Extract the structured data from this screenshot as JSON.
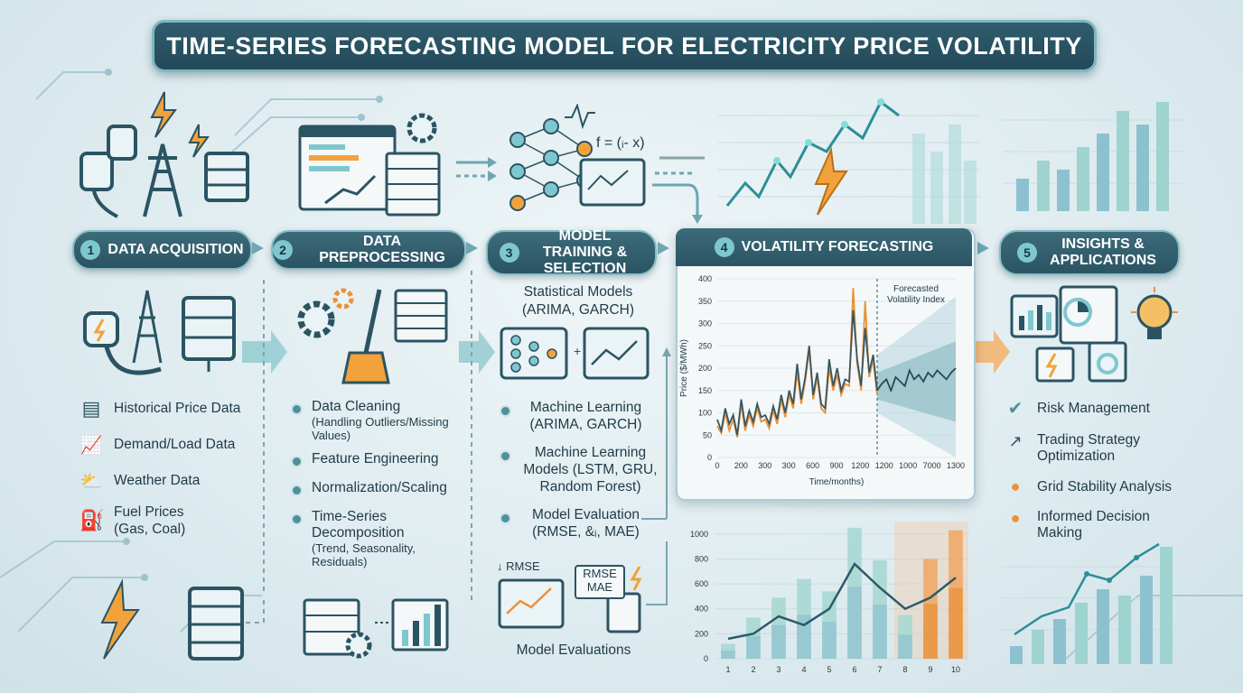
{
  "title": "TIME-SERIES FORECASTING MODEL FOR ELECTRICITY PRICE VOLATILITY",
  "stages": [
    {
      "num": "1",
      "label": "DATA ACQUISITION"
    },
    {
      "num": "2",
      "label": "DATA PREPROCESSING"
    },
    {
      "num": "3",
      "label": "MODEL TRAINING & SELECTION"
    },
    {
      "num": "4",
      "label": "VOLATILITY FORECASTING"
    },
    {
      "num": "5",
      "label": "INSIGHTS & APPLICATIONS"
    }
  ],
  "acquisition": {
    "items": [
      "Historical Price Data",
      "Demand/Load Data",
      "Weather Data",
      "Fuel Prices (Gas, Coal)"
    ]
  },
  "preprocessing": {
    "items": [
      {
        "label": "Data Cleaning",
        "detail": "(Handling Outliers/Missing Values)"
      },
      {
        "label": "Feature Engineering",
        "detail": ""
      },
      {
        "label": "Normalization/Scaling",
        "detail": ""
      },
      {
        "label": "Time-Series Decomposition",
        "detail": "(Trend, Seasonality, Residuals)"
      }
    ]
  },
  "training": {
    "statistical": "Statistical Models (ARIMA, GARCH)",
    "formula": "f = (ᵢ- x)",
    "items": [
      "Machine Learning (ARIMA, GARCH)",
      "Machine Learning Models (LSTM, GRU, Random Forest)",
      "Model Evaluation (RMSE, &ᵢ, MAE)"
    ],
    "rmse_label": "RMSE",
    "card_label": "RMSE MAE",
    "evaluations_label": "Model Evaluations"
  },
  "forecast_chart": {
    "annotation": "Forecasted Volatility Index",
    "ylabel": "Price ($/MWh)",
    "xlabel": "Time/months)"
  },
  "insights": {
    "items": [
      "Risk Management",
      "Trading Strategy Optimization",
      "Grid Stability Analysis",
      "Informed Decision Making"
    ]
  },
  "colors": {
    "dark": "#2b5463",
    "accent": "#7fc7cf",
    "orange": "#e8923a",
    "line": "#3a5560"
  },
  "chart_data": [
    {
      "type": "line",
      "title": "",
      "xlabel": "Time/months)",
      "ylabel": "Price ($/MWh)",
      "x_ticks": [
        "0",
        "200",
        "300",
        "300",
        "600",
        "900",
        "1200",
        "1200",
        "1000",
        "7000",
        "1300"
      ],
      "y_ticks": [
        0,
        50,
        100,
        150,
        200,
        250,
        300,
        350,
        400
      ],
      "ylim": [
        0,
        400
      ],
      "series": [
        {
          "name": "",
          "values": [
            85,
            60,
            110,
            75,
            95,
            50,
            130,
            70,
            105,
            80,
            120,
            90,
            95,
            75,
            115,
            85,
            140,
            100,
            150,
            120,
            210,
            130,
            180,
            250,
            140,
            190,
            120,
            110,
            220,
            160,
            200,
            150,
            175,
            170,
            330,
            220,
            160,
            290,
            190,
            230,
            150
          ]
        },
        {
          "name": "",
          "values": [
            70,
            55,
            100,
            60,
            85,
            45,
            120,
            60,
            95,
            70,
            110,
            80,
            85,
            65,
            105,
            75,
            130,
            90,
            140,
            110,
            190,
            120,
            170,
            240,
            130,
            180,
            110,
            100,
            200,
            150,
            185,
            140,
            165,
            160,
            380,
            210,
            150,
            350,
            180,
            220,
            140
          ]
        },
        {
          "name": "",
          "values": [
            150,
            165,
            175,
            150,
            180,
            170,
            160,
            195,
            175,
            185,
            170,
            190,
            180,
            195,
            185,
            175,
            190,
            200
          ]
        }
      ],
      "annotation": "Forecasted Volatility Index"
    },
    {
      "type": "bar",
      "categories": [
        "1",
        "2",
        "3",
        "4",
        "5",
        "6",
        "7",
        "8",
        "9",
        "10"
      ],
      "y_ticks": [
        0,
        200,
        400,
        600,
        800,
        1000
      ],
      "ylim": [
        0,
        1100
      ],
      "series": [
        {
          "name": "",
          "values": [
            120,
            330,
            490,
            640,
            540,
            1050,
            790,
            350,
            800,
            1030
          ]
        },
        {
          "name": "",
          "values": [
            160,
            200,
            340,
            270,
            400,
            760,
            570,
            400,
            490,
            650
          ]
        }
      ]
    }
  ]
}
